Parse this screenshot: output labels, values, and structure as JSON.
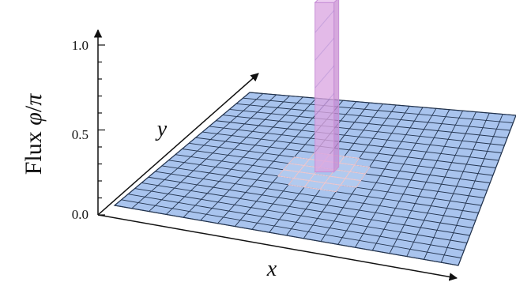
{
  "chart_data": {
    "type": "surface3d",
    "zlabel_prefix": "Flux ",
    "zlabel_phi": "φ",
    "zlabel_sep": "/",
    "zlabel_pi": "π",
    "xlabel": "x",
    "ylabel": "y",
    "z_ticks": [
      "0.0",
      "0.5",
      "1.0"
    ],
    "zlim": [
      0,
      1.0
    ],
    "grid_size": [
      20,
      20
    ],
    "baseline_flux": 0.0,
    "peak_flux": 1.25,
    "peak_cell": [
      9,
      10
    ],
    "colors": {
      "lattice_fill": "#a9c4ee",
      "lattice_line": "#23344f",
      "flux_tube_fill": "#dba7e2",
      "flux_tube_edge": "#c78fd6",
      "axis": "#111111"
    }
  }
}
